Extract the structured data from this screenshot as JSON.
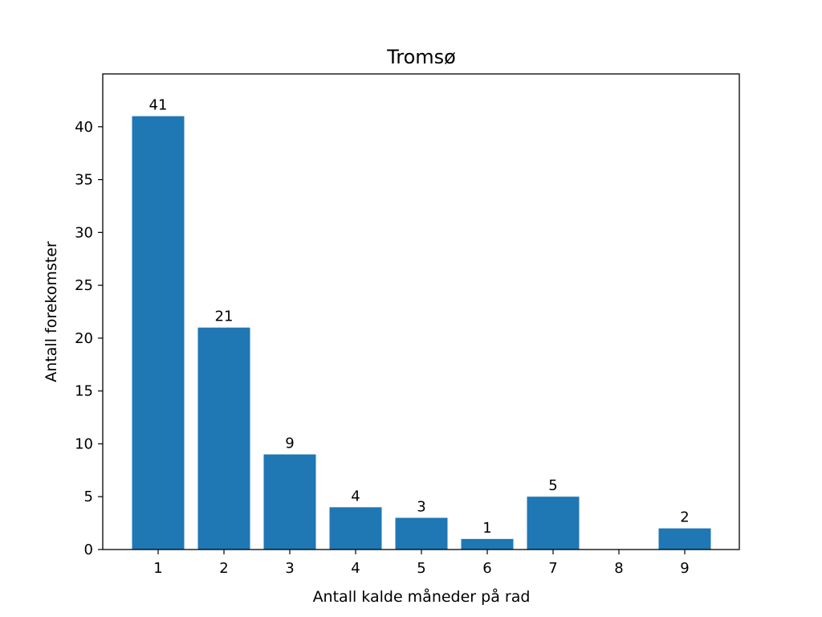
{
  "chart_data": {
    "type": "bar",
    "title": "Tromsø",
    "xlabel": "Antall kalde måneder på rad",
    "ylabel": "Antall forekomster",
    "categories": [
      "1",
      "2",
      "3",
      "4",
      "5",
      "6",
      "7",
      "8",
      "9"
    ],
    "values": [
      41,
      21,
      9,
      4,
      3,
      1,
      5,
      0,
      2
    ],
    "data_labels": [
      "41",
      "21",
      "9",
      "4",
      "3",
      "1",
      "5",
      "",
      "2"
    ],
    "ylim": [
      0,
      45
    ],
    "yticks": [
      0,
      5,
      10,
      15,
      20,
      25,
      30,
      35,
      40
    ],
    "bar_color": "#1f77b4",
    "grid": false
  }
}
